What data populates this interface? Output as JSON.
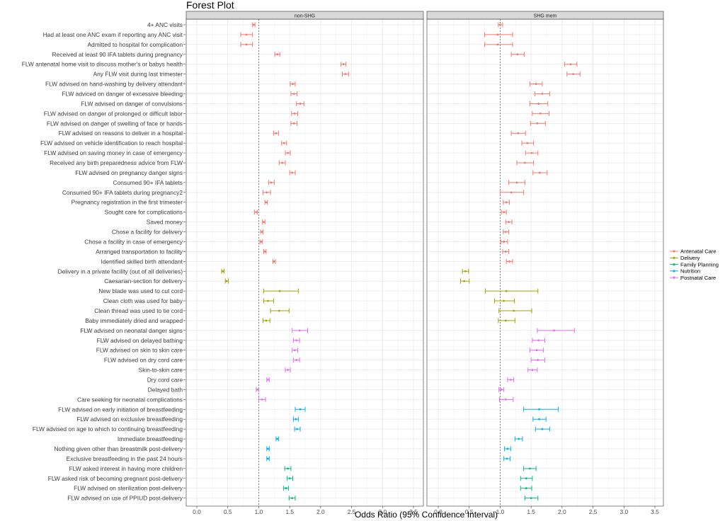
{
  "chart_data": {
    "type": "forest",
    "title": "Forest Plot",
    "xlabel": "Odds Ratio (95% Confidence Interval)",
    "xlim": [
      -0.1,
      3.6
    ],
    "xticks": [
      "0.0",
      "0.5",
      "1.0",
      "1.5",
      "2.0",
      "2.5",
      "3.0",
      "3.5"
    ],
    "reference_line": 1.0,
    "grid": true,
    "legend_position": "right",
    "panels": [
      "non-SHG",
      "SHG mem"
    ],
    "groups": [
      {
        "name": "Antenatal Care",
        "color": "#F8766D"
      },
      {
        "name": "Delivery",
        "color": "#A3A500"
      },
      {
        "name": "Family Planning",
        "color": "#00BF7D"
      },
      {
        "name": "Nutrition",
        "color": "#00B0F6"
      },
      {
        "name": "Postnatal Care",
        "color": "#E76BF3"
      }
    ],
    "rows": [
      {
        "label": "4+ ANC visits",
        "group": "Antenatal Care",
        "non_shg": [
          0.92,
          0.9,
          0.94
        ],
        "shg": [
          1.0,
          0.97,
          1.04
        ]
      },
      {
        "label": "Had at least one ANC exam if reporting any ANC visit",
        "group": "Antenatal Care",
        "non_shg": [
          0.8,
          0.71,
          0.9
        ],
        "shg": [
          0.96,
          0.75,
          1.2
        ]
      },
      {
        "label": "Admitted to hospital for complication",
        "group": "Antenatal Care",
        "non_shg": [
          0.8,
          0.71,
          0.9
        ],
        "shg": [
          0.96,
          0.75,
          1.2
        ]
      },
      {
        "label": "Received at least 90 IFA tablets during pregnancy",
        "group": "Antenatal Care",
        "non_shg": [
          1.3,
          1.26,
          1.34
        ],
        "shg": [
          1.28,
          1.18,
          1.39
        ]
      },
      {
        "label": "FLW antenatal home visit to discuss mother's or babys health",
        "group": "Antenatal Care",
        "non_shg": [
          2.37,
          2.33,
          2.41
        ],
        "shg": [
          2.14,
          2.04,
          2.24
        ]
      },
      {
        "label": "Any FLW visit during last trimester",
        "group": "Antenatal Care",
        "non_shg": [
          2.4,
          2.35,
          2.45
        ],
        "shg": [
          2.18,
          2.08,
          2.29
        ]
      },
      {
        "label": "FLW advised on hand-washing by delivery attendant",
        "group": "Antenatal Care",
        "non_shg": [
          1.55,
          1.51,
          1.59
        ],
        "shg": [
          1.58,
          1.48,
          1.68
        ]
      },
      {
        "label": "FLW adviced on danger of excessive bleeding",
        "group": "Antenatal Care",
        "non_shg": [
          1.57,
          1.52,
          1.62
        ],
        "shg": [
          1.68,
          1.56,
          1.8
        ]
      },
      {
        "label": "FLW advised on danger of convulsions",
        "group": "Antenatal Care",
        "non_shg": [
          1.67,
          1.61,
          1.73
        ],
        "shg": [
          1.62,
          1.48,
          1.77
        ]
      },
      {
        "label": "FLW advised on danger of prolonged or difficult labor",
        "group": "Antenatal Care",
        "non_shg": [
          1.58,
          1.53,
          1.63
        ],
        "shg": [
          1.65,
          1.52,
          1.79
        ]
      },
      {
        "label": "FLW advised on danger of swelling of face or hands",
        "group": "Antenatal Care",
        "non_shg": [
          1.57,
          1.52,
          1.62
        ],
        "shg": [
          1.6,
          1.49,
          1.73
        ]
      },
      {
        "label": "FLW advised on reasons to deliver in a hospital",
        "group": "Antenatal Care",
        "non_shg": [
          1.28,
          1.24,
          1.32
        ],
        "shg": [
          1.29,
          1.18,
          1.41
        ]
      },
      {
        "label": "FLW advised on vehicle identification to reach hospital",
        "group": "Antenatal Care",
        "non_shg": [
          1.41,
          1.37,
          1.45
        ],
        "shg": [
          1.44,
          1.35,
          1.54
        ]
      },
      {
        "label": "FLW advised on saving money in case of emergency",
        "group": "Antenatal Care",
        "non_shg": [
          1.47,
          1.43,
          1.51
        ],
        "shg": [
          1.51,
          1.41,
          1.61
        ]
      },
      {
        "label": "Received any birth preparedness advice from FLW",
        "group": "Antenatal Care",
        "non_shg": [
          1.38,
          1.33,
          1.43
        ],
        "shg": [
          1.4,
          1.27,
          1.54
        ]
      },
      {
        "label": "FLW advised on pregnancy danger signs",
        "group": "Antenatal Care",
        "non_shg": [
          1.54,
          1.5,
          1.59
        ],
        "shg": [
          1.64,
          1.53,
          1.76
        ]
      },
      {
        "label": "Consumed 90+ IFA tablets",
        "group": "Antenatal Care",
        "non_shg": [
          1.2,
          1.16,
          1.25
        ],
        "shg": [
          1.27,
          1.14,
          1.4
        ]
      },
      {
        "label": "Consumed 90+ IFA tablets during pregnancy2",
        "group": "Antenatal Care",
        "non_shg": [
          1.13,
          1.07,
          1.19
        ],
        "shg": [
          1.18,
          1.0,
          1.38
        ]
      },
      {
        "label": "Pregnancy registration in the first trimester",
        "group": "Antenatal Care",
        "non_shg": [
          1.12,
          1.1,
          1.14
        ],
        "shg": [
          1.1,
          1.05,
          1.15
        ]
      },
      {
        "label": "Sought care for complications",
        "group": "Antenatal Care",
        "non_shg": [
          0.96,
          0.93,
          0.98
        ],
        "shg": [
          1.06,
          1.02,
          1.1
        ]
      },
      {
        "label": "Saved money",
        "group": "Antenatal Care",
        "non_shg": [
          1.08,
          1.06,
          1.1
        ],
        "shg": [
          1.14,
          1.09,
          1.19
        ]
      },
      {
        "label": "Chose a facility for delivery",
        "group": "Antenatal Care",
        "non_shg": [
          1.05,
          1.03,
          1.07
        ],
        "shg": [
          1.09,
          1.05,
          1.14
        ]
      },
      {
        "label": "Chose a facility in case of emergency",
        "group": "Antenatal Care",
        "non_shg": [
          1.04,
          1.02,
          1.06
        ],
        "shg": [
          1.06,
          1.01,
          1.12
        ]
      },
      {
        "label": "Arranged transportation to facility",
        "group": "Antenatal Care",
        "non_shg": [
          1.1,
          1.08,
          1.12
        ],
        "shg": [
          1.09,
          1.04,
          1.14
        ]
      },
      {
        "label": "Identified skilled birth attendant",
        "group": "Antenatal Care",
        "non_shg": [
          1.25,
          1.23,
          1.27
        ],
        "shg": [
          1.15,
          1.1,
          1.2
        ]
      },
      {
        "label": "Delivery in a private facility (out of all deliveries)",
        "group": "Delivery",
        "non_shg": [
          0.42,
          0.4,
          0.44
        ],
        "shg": [
          0.44,
          0.39,
          0.49
        ]
      },
      {
        "label": "Caesarian-section for delivery",
        "group": "Delivery",
        "non_shg": [
          0.48,
          0.46,
          0.51
        ],
        "shg": [
          0.42,
          0.36,
          0.5
        ]
      },
      {
        "label": "New blade was used to cut cord",
        "group": "Delivery",
        "non_shg": [
          1.34,
          1.08,
          1.64
        ],
        "shg": [
          1.1,
          0.76,
          1.61
        ]
      },
      {
        "label": "Clean cloth was used for baby",
        "group": "Delivery",
        "non_shg": [
          1.15,
          1.08,
          1.24
        ],
        "shg": [
          1.06,
          0.91,
          1.23
        ]
      },
      {
        "label": "Clean thread was used to tie cord",
        "group": "Delivery",
        "non_shg": [
          1.33,
          1.19,
          1.49
        ],
        "shg": [
          1.22,
          0.98,
          1.51
        ]
      },
      {
        "label": "Baby immediately dried and wrapped",
        "group": "Delivery",
        "non_shg": [
          1.12,
          1.07,
          1.18
        ],
        "shg": [
          1.09,
          0.97,
          1.24
        ]
      },
      {
        "label": "FLW advised on neonatal danger signs",
        "group": "Postnatal Care",
        "non_shg": [
          1.66,
          1.54,
          1.79
        ],
        "shg": [
          1.87,
          1.6,
          2.2
        ]
      },
      {
        "label": "FLW advised on delayed bathing",
        "group": "Postnatal Care",
        "non_shg": [
          1.61,
          1.56,
          1.66
        ],
        "shg": [
          1.62,
          1.52,
          1.72
        ]
      },
      {
        "label": "FLW advised on skin to skin care",
        "group": "Postnatal Care",
        "non_shg": [
          1.58,
          1.54,
          1.63
        ],
        "shg": [
          1.59,
          1.48,
          1.7
        ]
      },
      {
        "label": "FLW advised on dry cord care",
        "group": "Postnatal Care",
        "non_shg": [
          1.61,
          1.56,
          1.66
        ],
        "shg": [
          1.61,
          1.5,
          1.72
        ]
      },
      {
        "label": "Skin-to-skin care",
        "group": "Postnatal Care",
        "non_shg": [
          1.47,
          1.43,
          1.51
        ],
        "shg": [
          1.52,
          1.45,
          1.6
        ]
      },
      {
        "label": "Dry cord care",
        "group": "Postnatal Care",
        "non_shg": [
          1.15,
          1.13,
          1.17
        ],
        "shg": [
          1.17,
          1.12,
          1.22
        ]
      },
      {
        "label": "Delayed bath",
        "group": "Postnatal Care",
        "non_shg": [
          0.98,
          0.96,
          1.0
        ],
        "shg": [
          1.02,
          0.98,
          1.06
        ]
      },
      {
        "label": "Care seeking for neonatal complications",
        "group": "Postnatal Care",
        "non_shg": [
          1.05,
          1.0,
          1.11
        ],
        "shg": [
          1.09,
          0.99,
          1.21
        ]
      },
      {
        "label": "FLW advised on early initiation of breastfeeding",
        "group": "Nutrition",
        "non_shg": [
          1.67,
          1.59,
          1.75
        ],
        "shg": [
          1.63,
          1.38,
          1.94
        ]
      },
      {
        "label": "FLW advised on exclusive breastfeeding",
        "group": "Nutrition",
        "non_shg": [
          1.6,
          1.56,
          1.64
        ],
        "shg": [
          1.63,
          1.53,
          1.74
        ]
      },
      {
        "label": "FLW advised on age to which to continuing breastfeeding",
        "group": "Nutrition",
        "non_shg": [
          1.62,
          1.58,
          1.67
        ],
        "shg": [
          1.68,
          1.57,
          1.8
        ]
      },
      {
        "label": "Immediate breastfeeding",
        "group": "Nutrition",
        "non_shg": [
          1.3,
          1.28,
          1.32
        ],
        "shg": [
          1.3,
          1.24,
          1.36
        ]
      },
      {
        "label": "Nothing given other than breastmilk post-delivery",
        "group": "Nutrition",
        "non_shg": [
          1.15,
          1.13,
          1.17
        ],
        "shg": [
          1.12,
          1.07,
          1.17
        ]
      },
      {
        "label": "Exclusive breastfeeding in the past 24 hours",
        "group": "Nutrition",
        "non_shg": [
          1.15,
          1.13,
          1.17
        ],
        "shg": [
          1.11,
          1.06,
          1.16
        ]
      },
      {
        "label": "FLW asked interest in having more children",
        "group": "Family Planning",
        "non_shg": [
          1.47,
          1.42,
          1.52
        ],
        "shg": [
          1.48,
          1.38,
          1.58
        ]
      },
      {
        "label": "FLW asked risk of becoming pregnant post-delivery",
        "group": "Family Planning",
        "non_shg": [
          1.5,
          1.46,
          1.55
        ],
        "shg": [
          1.42,
          1.33,
          1.52
        ]
      },
      {
        "label": "FLW advised on sterilization post-delivery",
        "group": "Family Planning",
        "non_shg": [
          1.44,
          1.4,
          1.48
        ],
        "shg": [
          1.42,
          1.33,
          1.51
        ]
      },
      {
        "label": "FLW advised on use of PPIUD post-delivery",
        "group": "Family Planning",
        "non_shg": [
          1.54,
          1.49,
          1.59
        ],
        "shg": [
          1.5,
          1.4,
          1.61
        ]
      }
    ]
  }
}
